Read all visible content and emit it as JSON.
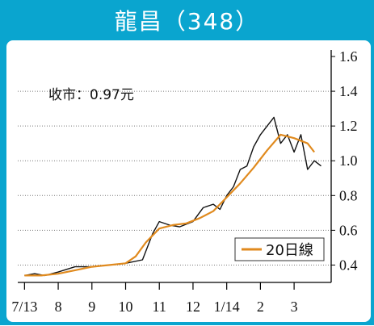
{
  "title": "龍昌（348）",
  "colors": {
    "frame": "#0aa5cf",
    "price": "#111111",
    "ma20": "#e08a1e"
  },
  "annotation": "收市：0.97元",
  "chart_data": {
    "type": "line",
    "title": "龍昌（348）",
    "xlabel": "",
    "ylabel": "",
    "ylim": [
      0.3,
      1.6
    ],
    "grid": true,
    "y_axis_position": "right",
    "legend_position": "bottom-right",
    "y_ticks": [
      {
        "value": 0.4,
        "label": "0.4"
      },
      {
        "value": 0.6,
        "label": "0.6"
      },
      {
        "value": 0.8,
        "label": "0.8"
      },
      {
        "value": 1.0,
        "label": "1.0"
      },
      {
        "value": 1.2,
        "label": "1.2"
      },
      {
        "value": 1.4,
        "label": "1.4"
      },
      {
        "value": 1.6,
        "label": "1.6"
      }
    ],
    "x_ticks": [
      "7/13",
      "8",
      "9",
      "10",
      "11",
      "12",
      "1/14",
      "2",
      "3"
    ],
    "series": [
      {
        "name": "",
        "kind": "price",
        "x": [
          0,
          0.3,
          0.6,
          1,
          1.5,
          2,
          2.5,
          3,
          3.5,
          3.8,
          4,
          4.3,
          4.6,
          5,
          5.3,
          5.6,
          5.8,
          6,
          6.2,
          6.4,
          6.6,
          6.8,
          7,
          7.2,
          7.4,
          7.6,
          7.8,
          8,
          8.2,
          8.4,
          8.6,
          8.8
        ],
        "values": [
          0.34,
          0.35,
          0.34,
          0.36,
          0.39,
          0.39,
          0.4,
          0.41,
          0.43,
          0.58,
          0.65,
          0.63,
          0.62,
          0.65,
          0.73,
          0.75,
          0.72,
          0.8,
          0.85,
          0.95,
          0.97,
          1.08,
          1.15,
          1.2,
          1.25,
          1.1,
          1.15,
          1.05,
          1.15,
          0.95,
          1.0,
          0.97
        ]
      },
      {
        "name": "20日線",
        "kind": "ma",
        "x": [
          0,
          0.5,
          1,
          1.5,
          2,
          2.5,
          3,
          3.3,
          3.6,
          4,
          4.4,
          4.8,
          5.2,
          5.6,
          6,
          6.4,
          6.8,
          7.2,
          7.6,
          8,
          8.4,
          8.6
        ],
        "values": [
          0.34,
          0.34,
          0.35,
          0.37,
          0.39,
          0.4,
          0.41,
          0.45,
          0.53,
          0.61,
          0.63,
          0.64,
          0.67,
          0.71,
          0.79,
          0.87,
          0.96,
          1.06,
          1.15,
          1.13,
          1.1,
          1.05
        ]
      }
    ]
  }
}
